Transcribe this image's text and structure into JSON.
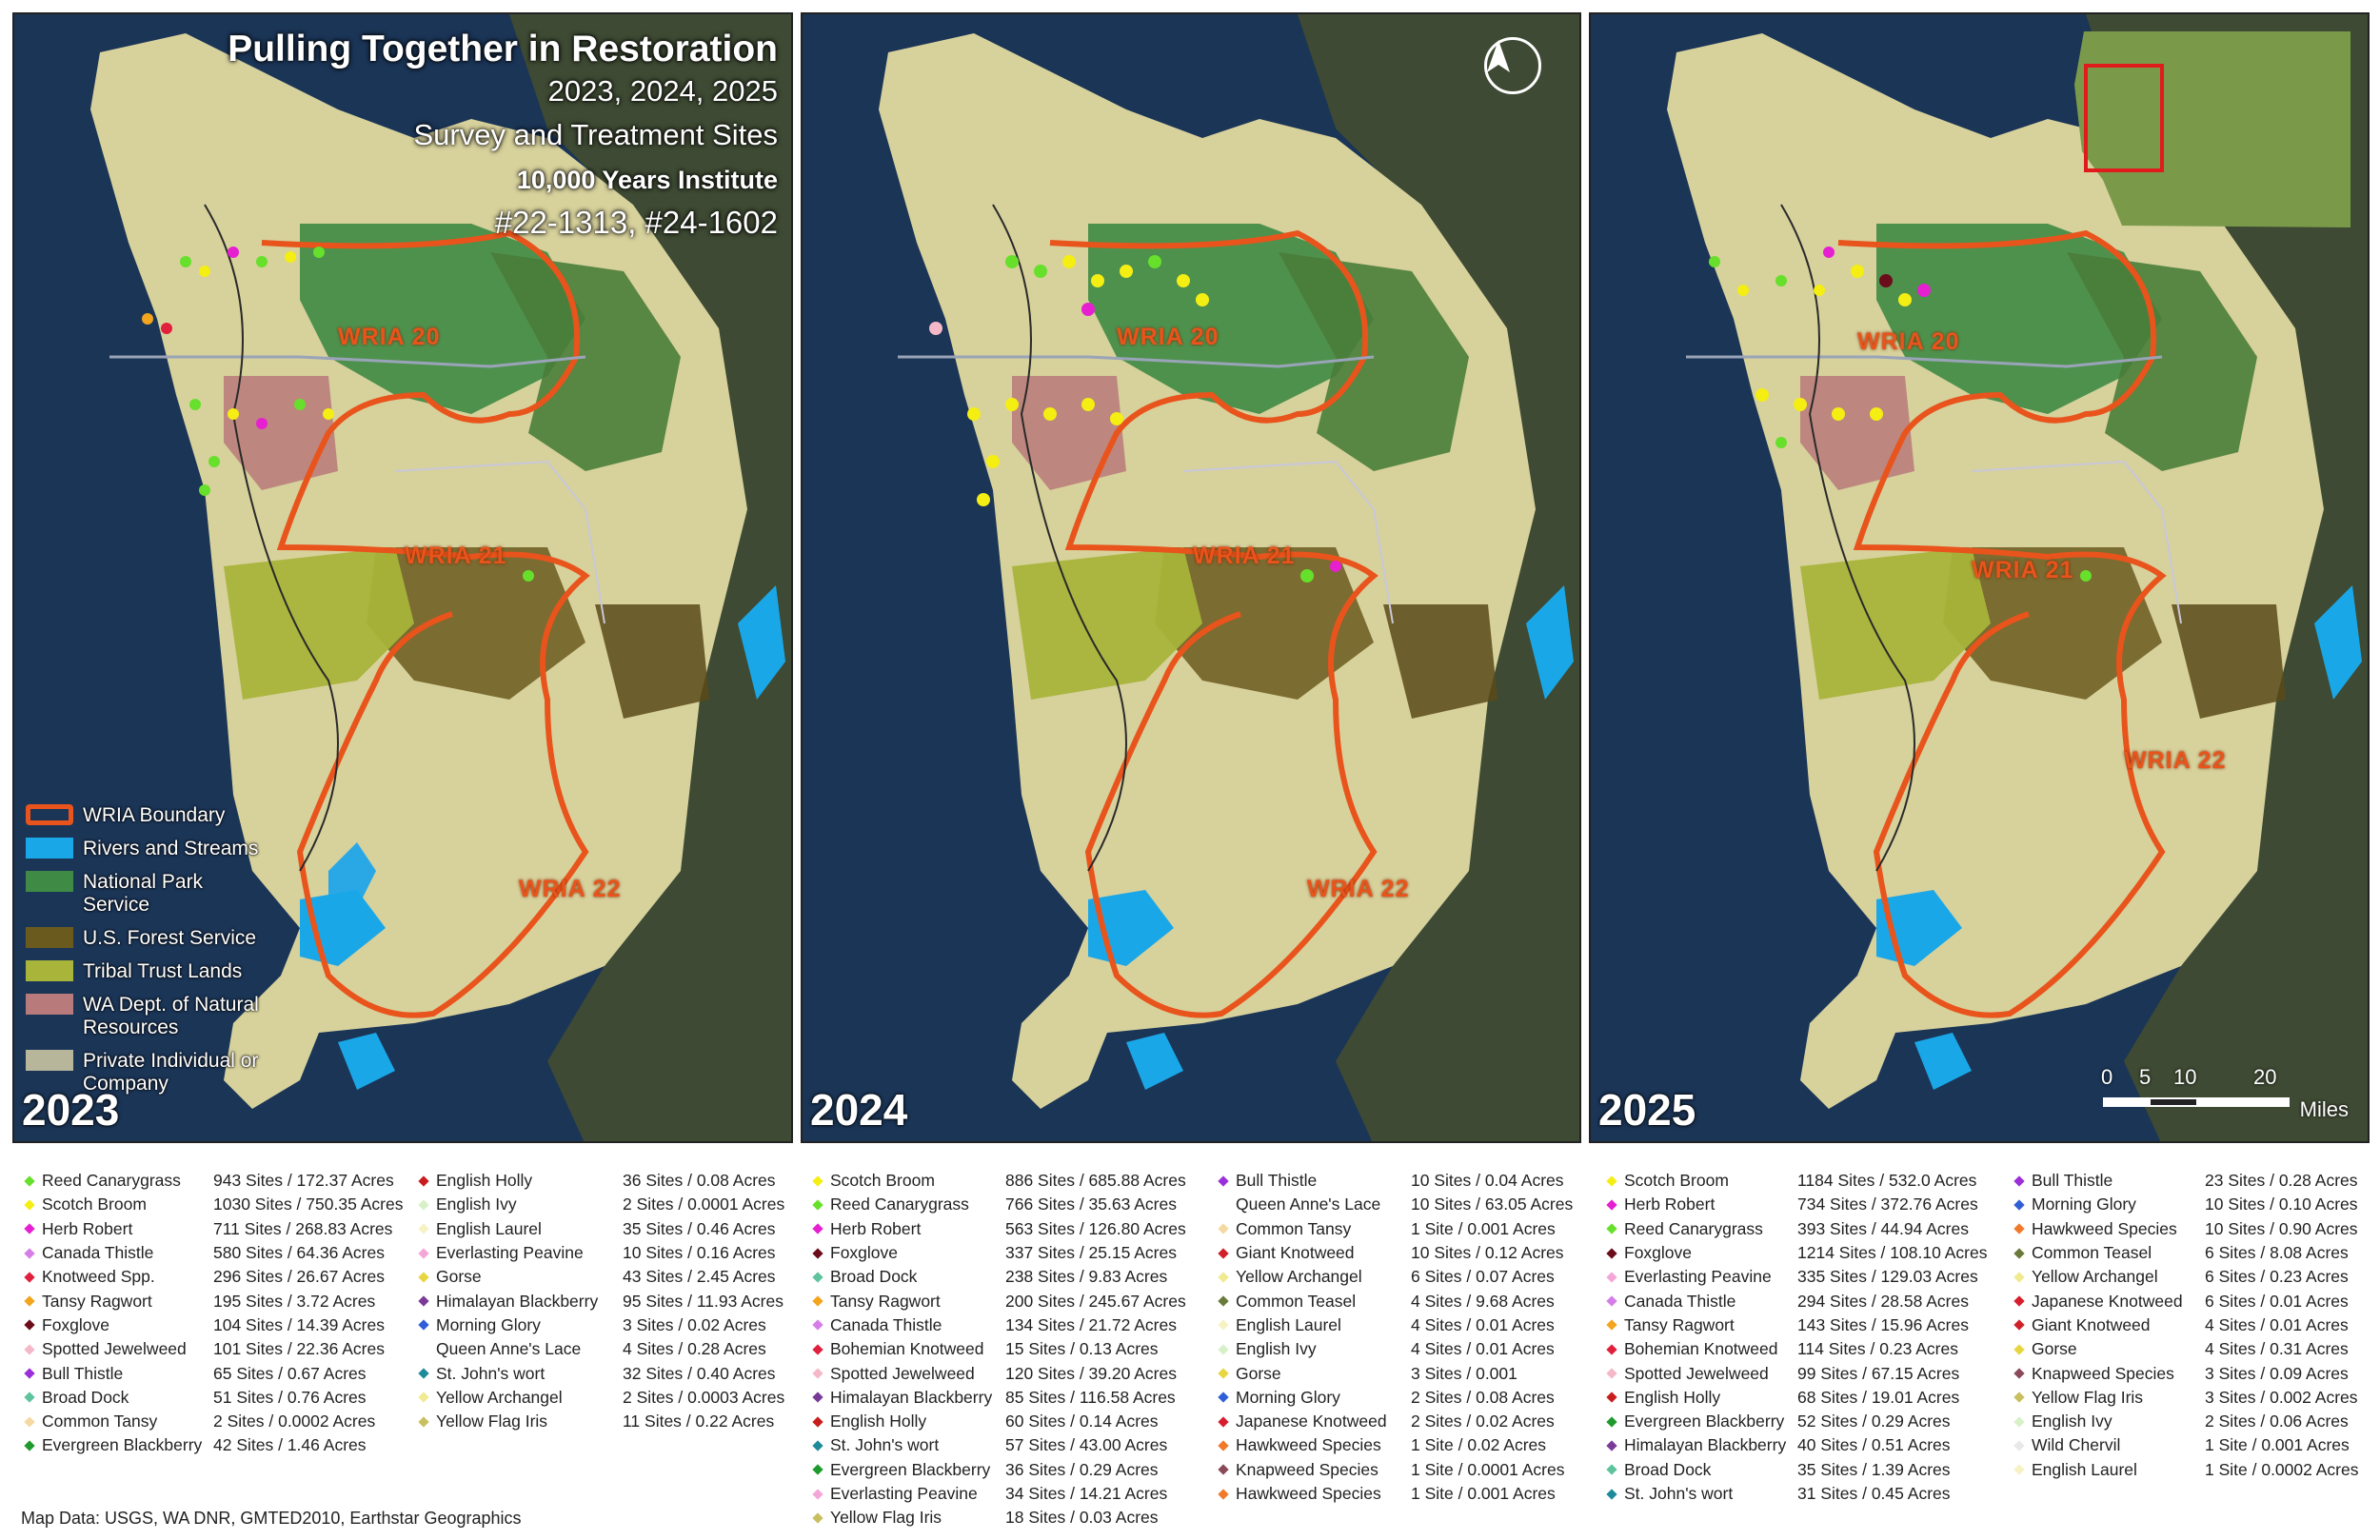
{
  "title": {
    "main": "Pulling Together in Restoration",
    "years": "2023, 2024, 2025",
    "subtitle": "Survey and Treatment Sites",
    "org": "10,000 Years Institute",
    "grants": "#22-1313, #24-1602"
  },
  "panels": [
    {
      "year": "2023"
    },
    {
      "year": "2024"
    },
    {
      "year": "2025"
    }
  ],
  "wria_labels": [
    "WRIA 20",
    "WRIA 21",
    "WRIA 22"
  ],
  "map_legend": [
    {
      "label": "WRIA Boundary",
      "color": "#e8541c"
    },
    {
      "label": "Rivers and Streams",
      "color": "#1aa7e8"
    },
    {
      "label": "National Park Service",
      "color": "#3f8a45"
    },
    {
      "label": "U.S. Forest Service",
      "color": "#6b5a1e"
    },
    {
      "label": "Tribal Trust Lands",
      "color": "#a8b43a"
    },
    {
      "label": "WA Dept. of Natural Resources",
      "color": "#b87a7a"
    },
    {
      "label": "Private Individual or Company",
      "color": "#b8b69a"
    }
  ],
  "scale": {
    "ticks": [
      "0",
      "5",
      "10",
      "20"
    ],
    "units": "Miles"
  },
  "map_data_credit": "Map Data: USGS, WA DNR, GMTED2010, Earthstar Geographics",
  "legend_2023": {
    "col1": [
      {
        "name": "Reed Canarygrass",
        "value": "943 Sites / 172.37 Acres",
        "color": "#66e02b"
      },
      {
        "name": "Scotch Broom",
        "value": "1030 Sites / 750.35 Acres",
        "color": "#f4ee12"
      },
      {
        "name": "Herb Robert",
        "value": "711 Sites / 268.83 Acres",
        "color": "#e61fd0"
      },
      {
        "name": "Canada Thistle",
        "value": "580 Sites / 64.36 Acres",
        "color": "#d67ee8"
      },
      {
        "name": "Knotweed Spp.",
        "value": "296 Sites / 26.67 Acres",
        "color": "#e0203c"
      },
      {
        "name": "Tansy Ragwort",
        "value": "195 Sites / 3.72 Acres",
        "color": "#f2a51d"
      },
      {
        "name": "Foxglove",
        "value": "104 Sites / 14.39 Acres",
        "color": "#6b0d1a"
      },
      {
        "name": "Spotted Jewelweed",
        "value": "101 Sites / 22.36 Acres",
        "color": "#f5b8c8"
      },
      {
        "name": "Bull Thistle",
        "value": "65 Sites / 0.67 Acres",
        "color": "#9b2fd9"
      },
      {
        "name": "Broad Dock",
        "value": "51 Sites / 0.76 Acres",
        "color": "#5fc49c"
      },
      {
        "name": "Common Tansy",
        "value": "2 Sites / 0.0002 Acres",
        "color": "#f5d9a3"
      },
      {
        "name": "Evergreen Blackberry",
        "value": "42 Sites / 1.46 Acres",
        "color": "#1f9a2c"
      }
    ],
    "col2": [
      {
        "name": "English Holly",
        "value": "36 Sites / 0.08 Acres",
        "color": "#c91d1d"
      },
      {
        "name": "English Ivy",
        "value": "2 Sites / 0.0001 Acres",
        "color": "#d8f0c8"
      },
      {
        "name": "English Laurel",
        "value": "35 Sites / 0.46 Acres",
        "color": "#f6f2c4"
      },
      {
        "name": "Everlasting Peavine",
        "value": "10 Sites / 0.16 Acres",
        "color": "#f5a6d8"
      },
      {
        "name": "Gorse",
        "value": "43 Sites / 2.45 Acres",
        "color": "#e8d640"
      },
      {
        "name": "Himalayan Blackberry",
        "value": "95 Sites / 11.93 Acres",
        "color": "#7a3b98"
      },
      {
        "name": "Morning Glory",
        "value": "3 Sites / 0.02 Acres",
        "color": "#2f5fd6"
      },
      {
        "name": "Queen Anne's Lace",
        "value": "4 Sites / 0.28 Acres",
        "color": "#ffffff"
      },
      {
        "name": "St. John's wort",
        "value": "32 Sites / 0.40 Acres",
        "color": "#1f8a9a"
      },
      {
        "name": "Yellow Archangel",
        "value": "2 Sites / 0.0003 Acres",
        "color": "#f0ea90"
      },
      {
        "name": "Yellow Flag Iris",
        "value": "11 Sites / 0.22 Acres",
        "color": "#c8c060"
      }
    ]
  },
  "legend_2024": {
    "col1": [
      {
        "name": "Scotch Broom",
        "value": "886 Sites / 685.88 Acres",
        "color": "#f4ee12"
      },
      {
        "name": "Reed Canarygrass",
        "value": "766 Sites / 35.63 Acres",
        "color": "#66e02b"
      },
      {
        "name": "Herb Robert",
        "value": "563 Sites / 126.80 Acres",
        "color": "#e61fd0"
      },
      {
        "name": "Foxglove",
        "value": "337 Sites / 25.15 Acres",
        "color": "#6b0d1a"
      },
      {
        "name": "Broad Dock",
        "value": "238 Sites / 9.83 Acres",
        "color": "#5fc49c"
      },
      {
        "name": "Tansy Ragwort",
        "value": "200 Sites / 245.67 Acres",
        "color": "#f2a51d"
      },
      {
        "name": "Canada Thistle",
        "value": "134 Sites / 21.72 Acres",
        "color": "#d67ee8"
      },
      {
        "name": "Bohemian Knotweed",
        "value": "15 Sites / 0.13 Acres",
        "color": "#e0203c"
      },
      {
        "name": "Spotted Jewelweed",
        "value": "120 Sites / 39.20 Acres",
        "color": "#f5b8c8"
      },
      {
        "name": "Himalayan Blackberry",
        "value": "85 Sites / 116.58 Acres",
        "color": "#7a3b98"
      },
      {
        "name": "English Holly",
        "value": "60 Sites / 0.14 Acres",
        "color": "#c91d1d"
      },
      {
        "name": "St. John's wort",
        "value": "57 Sites / 43.00 Acres",
        "color": "#1f8a9a"
      },
      {
        "name": "Evergreen Blackberry",
        "value": "36 Sites / 0.29 Acres",
        "color": "#1f9a2c"
      },
      {
        "name": "Everlasting Peavine",
        "value": "34 Sites / 14.21 Acres",
        "color": "#f5a6d8"
      },
      {
        "name": "Yellow Flag Iris",
        "value": "18 Sites / 0.03 Acres",
        "color": "#c8c060"
      }
    ],
    "col2": [
      {
        "name": "Bull Thistle",
        "value": "10 Sites / 0.04 Acres",
        "color": "#9b2fd9"
      },
      {
        "name": "Queen Anne's Lace",
        "value": "10 Sites / 63.05 Acres",
        "color": "#ffffff"
      },
      {
        "name": "Common Tansy",
        "value": "1 Site / 0.001 Acres",
        "color": "#f5d9a3"
      },
      {
        "name": "Giant Knotweed",
        "value": "10 Sites / 0.12 Acres",
        "color": "#d0202a"
      },
      {
        "name": "Yellow Archangel",
        "value": "6 Sites / 0.07 Acres",
        "color": "#f0ea90"
      },
      {
        "name": "Common Teasel",
        "value": "4 Sites / 9.68 Acres",
        "color": "#6a7a3a"
      },
      {
        "name": "English Laurel",
        "value": "4 Sites / 0.01 Acres",
        "color": "#f6f2c4"
      },
      {
        "name": "English Ivy",
        "value": "4 Sites / 0.01 Acres",
        "color": "#d8f0c8"
      },
      {
        "name": "Gorse",
        "value": "3 Sites / 0.001",
        "color": "#e8d640"
      },
      {
        "name": "Morning Glory",
        "value": "2 Sites / 0.08 Acres",
        "color": "#2f5fd6"
      },
      {
        "name": "Japanese Knotweed",
        "value": "2 Sites / 0.02 Acres",
        "color": "#d81e2e"
      },
      {
        "name": "Hawkweed Species",
        "value": "1 Site / 0.02 Acres",
        "color": "#f07a2a"
      },
      {
        "name": "Knapweed Species",
        "value": "1 Site / 0.0001 Acres",
        "color": "#8a4a5a"
      },
      {
        "name": "Hawkweed Species",
        "value": "1 Site / 0.001 Acres",
        "color": "#f07a2a"
      }
    ]
  },
  "legend_2025": {
    "col1": [
      {
        "name": "Scotch Broom",
        "value": "1184 Sites / 532.0 Acres",
        "color": "#f4ee12"
      },
      {
        "name": "Herb Robert",
        "value": "734 Sites / 372.76 Acres",
        "color": "#e61fd0"
      },
      {
        "name": "Reed Canarygrass",
        "value": "393 Sites / 44.94 Acres",
        "color": "#66e02b"
      },
      {
        "name": "Foxglove",
        "value": "1214 Sites / 108.10 Acres",
        "color": "#6b0d1a"
      },
      {
        "name": "Everlasting Peavine",
        "value": "335 Sites / 129.03 Acres",
        "color": "#f5a6d8"
      },
      {
        "name": "Canada Thistle",
        "value": "294 Sites / 28.58 Acres",
        "color": "#d67ee8"
      },
      {
        "name": "Tansy Ragwort",
        "value": "143 Sites / 15.96 Acres",
        "color": "#f2a51d"
      },
      {
        "name": "Bohemian Knotweed",
        "value": "114 Sites / 0.23 Acres",
        "color": "#e0203c"
      },
      {
        "name": "Spotted Jewelweed",
        "value": "99 Sites / 67.15 Acres",
        "color": "#f5b8c8"
      },
      {
        "name": "English Holly",
        "value": "68 Sites / 19.01 Acres",
        "color": "#c91d1d"
      },
      {
        "name": "Evergreen Blackberry",
        "value": "52 Sites / 0.29 Acres",
        "color": "#1f9a2c"
      },
      {
        "name": "Himalayan Blackberry",
        "value": "40 Sites / 0.51 Acres",
        "color": "#7a3b98"
      },
      {
        "name": "Broad Dock",
        "value": "35 Sites / 1.39 Acres",
        "color": "#5fc49c"
      },
      {
        "name": "St. John's wort",
        "value": "31 Sites / 0.45 Acres",
        "color": "#1f8a9a"
      }
    ],
    "col2": [
      {
        "name": "Bull Thistle",
        "value": "23 Sites / 0.28 Acres",
        "color": "#9b2fd9"
      },
      {
        "name": "Morning Glory",
        "value": "10 Sites / 0.10 Acres",
        "color": "#2f5fd6"
      },
      {
        "name": "Hawkweed Species",
        "value": "10 Sites / 0.90 Acres",
        "color": "#f07a2a"
      },
      {
        "name": "Common Teasel",
        "value": "6 Sites / 8.08 Acres",
        "color": "#6a7a3a"
      },
      {
        "name": "Yellow Archangel",
        "value": "6 Sites / 0.23 Acres",
        "color": "#f0ea90"
      },
      {
        "name": "Japanese Knotweed",
        "value": "6 Sites / 0.01 Acres",
        "color": "#d81e2e"
      },
      {
        "name": "Giant Knotweed",
        "value": "4 Sites / 0.01 Acres",
        "color": "#d0202a"
      },
      {
        "name": "Gorse",
        "value": "4 Sites / 0.31 Acres",
        "color": "#e8d640"
      },
      {
        "name": "Knapweed Species",
        "value": "3 Sites / 0.09 Acres",
        "color": "#8a4a5a"
      },
      {
        "name": "Yellow Flag Iris",
        "value": "3 Sites / 0.002 Acres",
        "color": "#c8c060"
      },
      {
        "name": "English Ivy",
        "value": "2 Sites / 0.06 Acres",
        "color": "#d8f0c8"
      },
      {
        "name": "Wild Chervil",
        "value": "1 Site / 0.001 Acres",
        "color": "#e8e8e8"
      },
      {
        "name": "English Laurel",
        "value": "1 Site / 0.0002 Acres",
        "color": "#f6f2c4"
      }
    ]
  }
}
